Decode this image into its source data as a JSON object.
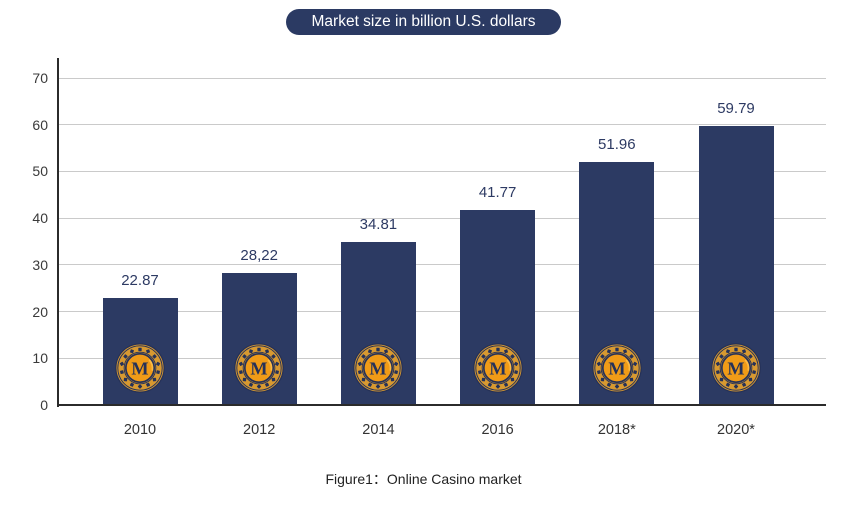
{
  "colors": {
    "bar": "#2c3a63",
    "title_bg": "#2b3a63",
    "title_text": "#ffffff",
    "grid": "#cacaca",
    "axis": "#2b2b2b",
    "tick_label": "#3a3a3a",
    "value_label": "#2d3a63",
    "coin_gold": "#d79931",
    "coin_inner": "#f09b17",
    "coin_detail": "#253158",
    "coin_highlight": "#ffc657"
  },
  "icons": {
    "bar_icon": "casino-coin-m-icon",
    "bar_icon_letter": "M"
  },
  "chart_data": {
    "type": "bar",
    "title": "Market size in billion U.S. dollars",
    "caption": "Figure1：Online Casino market",
    "categories": [
      "2010",
      "2012",
      "2014",
      "2016",
      "2018*",
      "2020*"
    ],
    "values": [
      22.87,
      28.22,
      34.81,
      41.77,
      51.96,
      59.79
    ],
    "value_labels": [
      "22.87",
      "28,22",
      "34.81",
      "41.77",
      "51.96",
      "59.79"
    ],
    "xlabel": "",
    "ylabel": "",
    "ylim": [
      0,
      70
    ],
    "yticks": [
      0,
      10,
      20,
      30,
      40,
      50,
      60,
      70
    ],
    "grid": true,
    "legend": "none"
  }
}
